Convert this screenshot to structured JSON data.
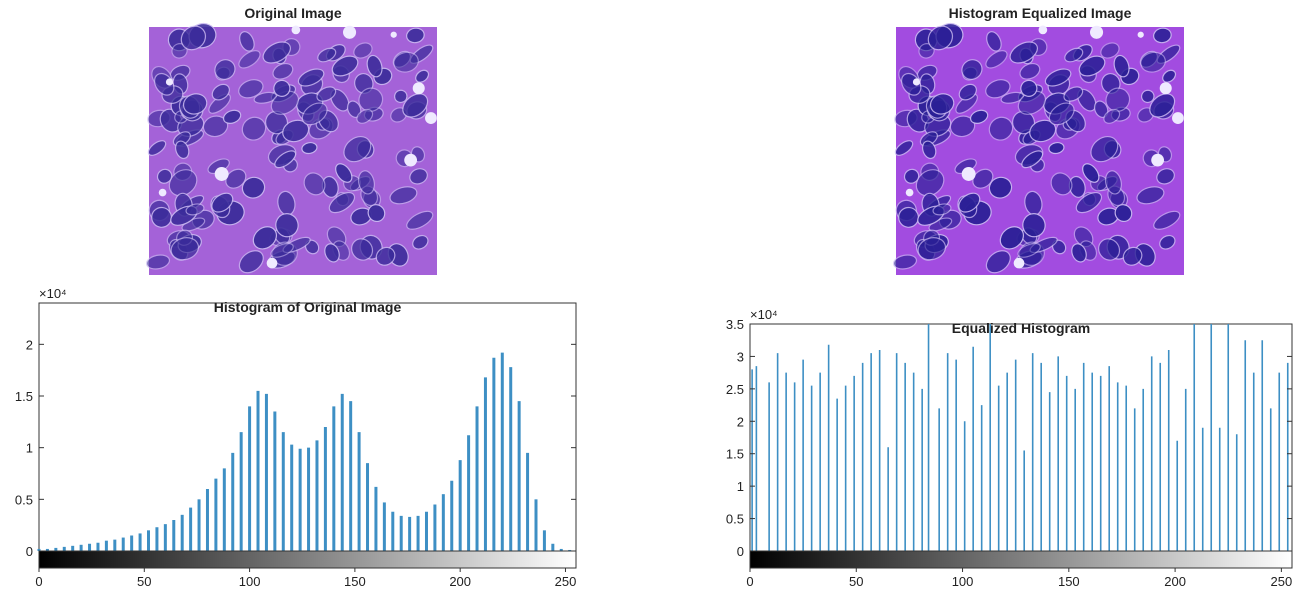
{
  "images": [
    {
      "title": "Original Image"
    },
    {
      "title": "Histogram Equalized Image"
    }
  ],
  "chart_data": [
    {
      "type": "stem",
      "title": "Histogram of Original Image",
      "y_exponent_label": "×10⁴",
      "color": "#3d8fc4",
      "x": [
        0,
        4,
        8,
        12,
        16,
        20,
        24,
        28,
        32,
        36,
        40,
        44,
        48,
        52,
        56,
        60,
        64,
        68,
        72,
        76,
        80,
        84,
        88,
        92,
        96,
        100,
        104,
        108,
        112,
        116,
        120,
        124,
        128,
        132,
        136,
        140,
        144,
        148,
        152,
        156,
        160,
        164,
        168,
        172,
        176,
        180,
        184,
        188,
        192,
        196,
        200,
        204,
        208,
        212,
        216,
        220,
        224,
        228,
        232,
        236,
        240,
        244,
        248,
        252
      ],
      "values": [
        0.02,
        0.02,
        0.03,
        0.04,
        0.05,
        0.06,
        0.07,
        0.08,
        0.1,
        0.11,
        0.13,
        0.15,
        0.17,
        0.2,
        0.23,
        0.26,
        0.3,
        0.35,
        0.42,
        0.5,
        0.6,
        0.7,
        0.8,
        0.95,
        1.15,
        1.4,
        1.55,
        1.52,
        1.35,
        1.15,
        1.03,
        0.99,
        1.0,
        1.07,
        1.2,
        1.4,
        1.52,
        1.45,
        1.15,
        0.85,
        0.62,
        0.47,
        0.38,
        0.34,
        0.33,
        0.34,
        0.38,
        0.45,
        0.55,
        0.68,
        0.88,
        1.12,
        1.4,
        1.68,
        1.87,
        1.92,
        1.78,
        1.45,
        0.95,
        0.5,
        0.2,
        0.07,
        0.02,
        0.01
      ],
      "xlim": [
        0,
        255
      ],
      "ylim": [
        0,
        2.4
      ],
      "xticks": [
        0,
        50,
        100,
        150,
        200,
        250
      ],
      "yticks": [
        0,
        0.5,
        1,
        1.5,
        2
      ]
    },
    {
      "type": "stem",
      "title": "Equalized Histogram",
      "y_exponent_label": "×10⁴",
      "color": "#3d8fc4",
      "x": [
        1,
        3,
        9,
        13,
        17,
        21,
        25,
        29,
        33,
        37,
        41,
        45,
        49,
        53,
        57,
        61,
        65,
        69,
        73,
        77,
        81,
        84,
        89,
        93,
        97,
        101,
        105,
        109,
        113,
        117,
        121,
        125,
        129,
        133,
        137,
        141,
        145,
        149,
        153,
        157,
        161,
        165,
        169,
        173,
        177,
        181,
        185,
        189,
        193,
        197,
        201,
        205,
        209,
        213,
        217,
        221,
        225,
        229,
        233,
        237,
        241,
        245,
        249,
        253
      ],
      "values": [
        2.8,
        2.85,
        2.6,
        3.05,
        2.75,
        2.6,
        2.95,
        2.55,
        2.75,
        3.18,
        2.35,
        2.55,
        2.7,
        2.9,
        3.05,
        3.1,
        1.6,
        3.05,
        2.9,
        2.75,
        2.5,
        3.5,
        2.2,
        3.05,
        2.95,
        2.0,
        3.15,
        2.25,
        3.5,
        2.55,
        2.75,
        2.95,
        1.55,
        3.05,
        2.9,
        2.45,
        3.0,
        2.7,
        2.5,
        2.9,
        2.75,
        2.7,
        2.85,
        2.6,
        2.55,
        2.2,
        2.5,
        3.0,
        2.9,
        3.1,
        1.7,
        2.5,
        3.5,
        1.9,
        3.5,
        1.9,
        3.5,
        1.8,
        3.25,
        2.75,
        3.25,
        2.2,
        2.75,
        2.9
      ],
      "xlim": [
        0,
        255
      ],
      "ylim": [
        0,
        3.5
      ],
      "xticks": [
        0,
        50,
        100,
        150,
        200,
        250
      ],
      "yticks": [
        0,
        0.5,
        1,
        1.5,
        2,
        2.5,
        3,
        3.5
      ]
    }
  ]
}
